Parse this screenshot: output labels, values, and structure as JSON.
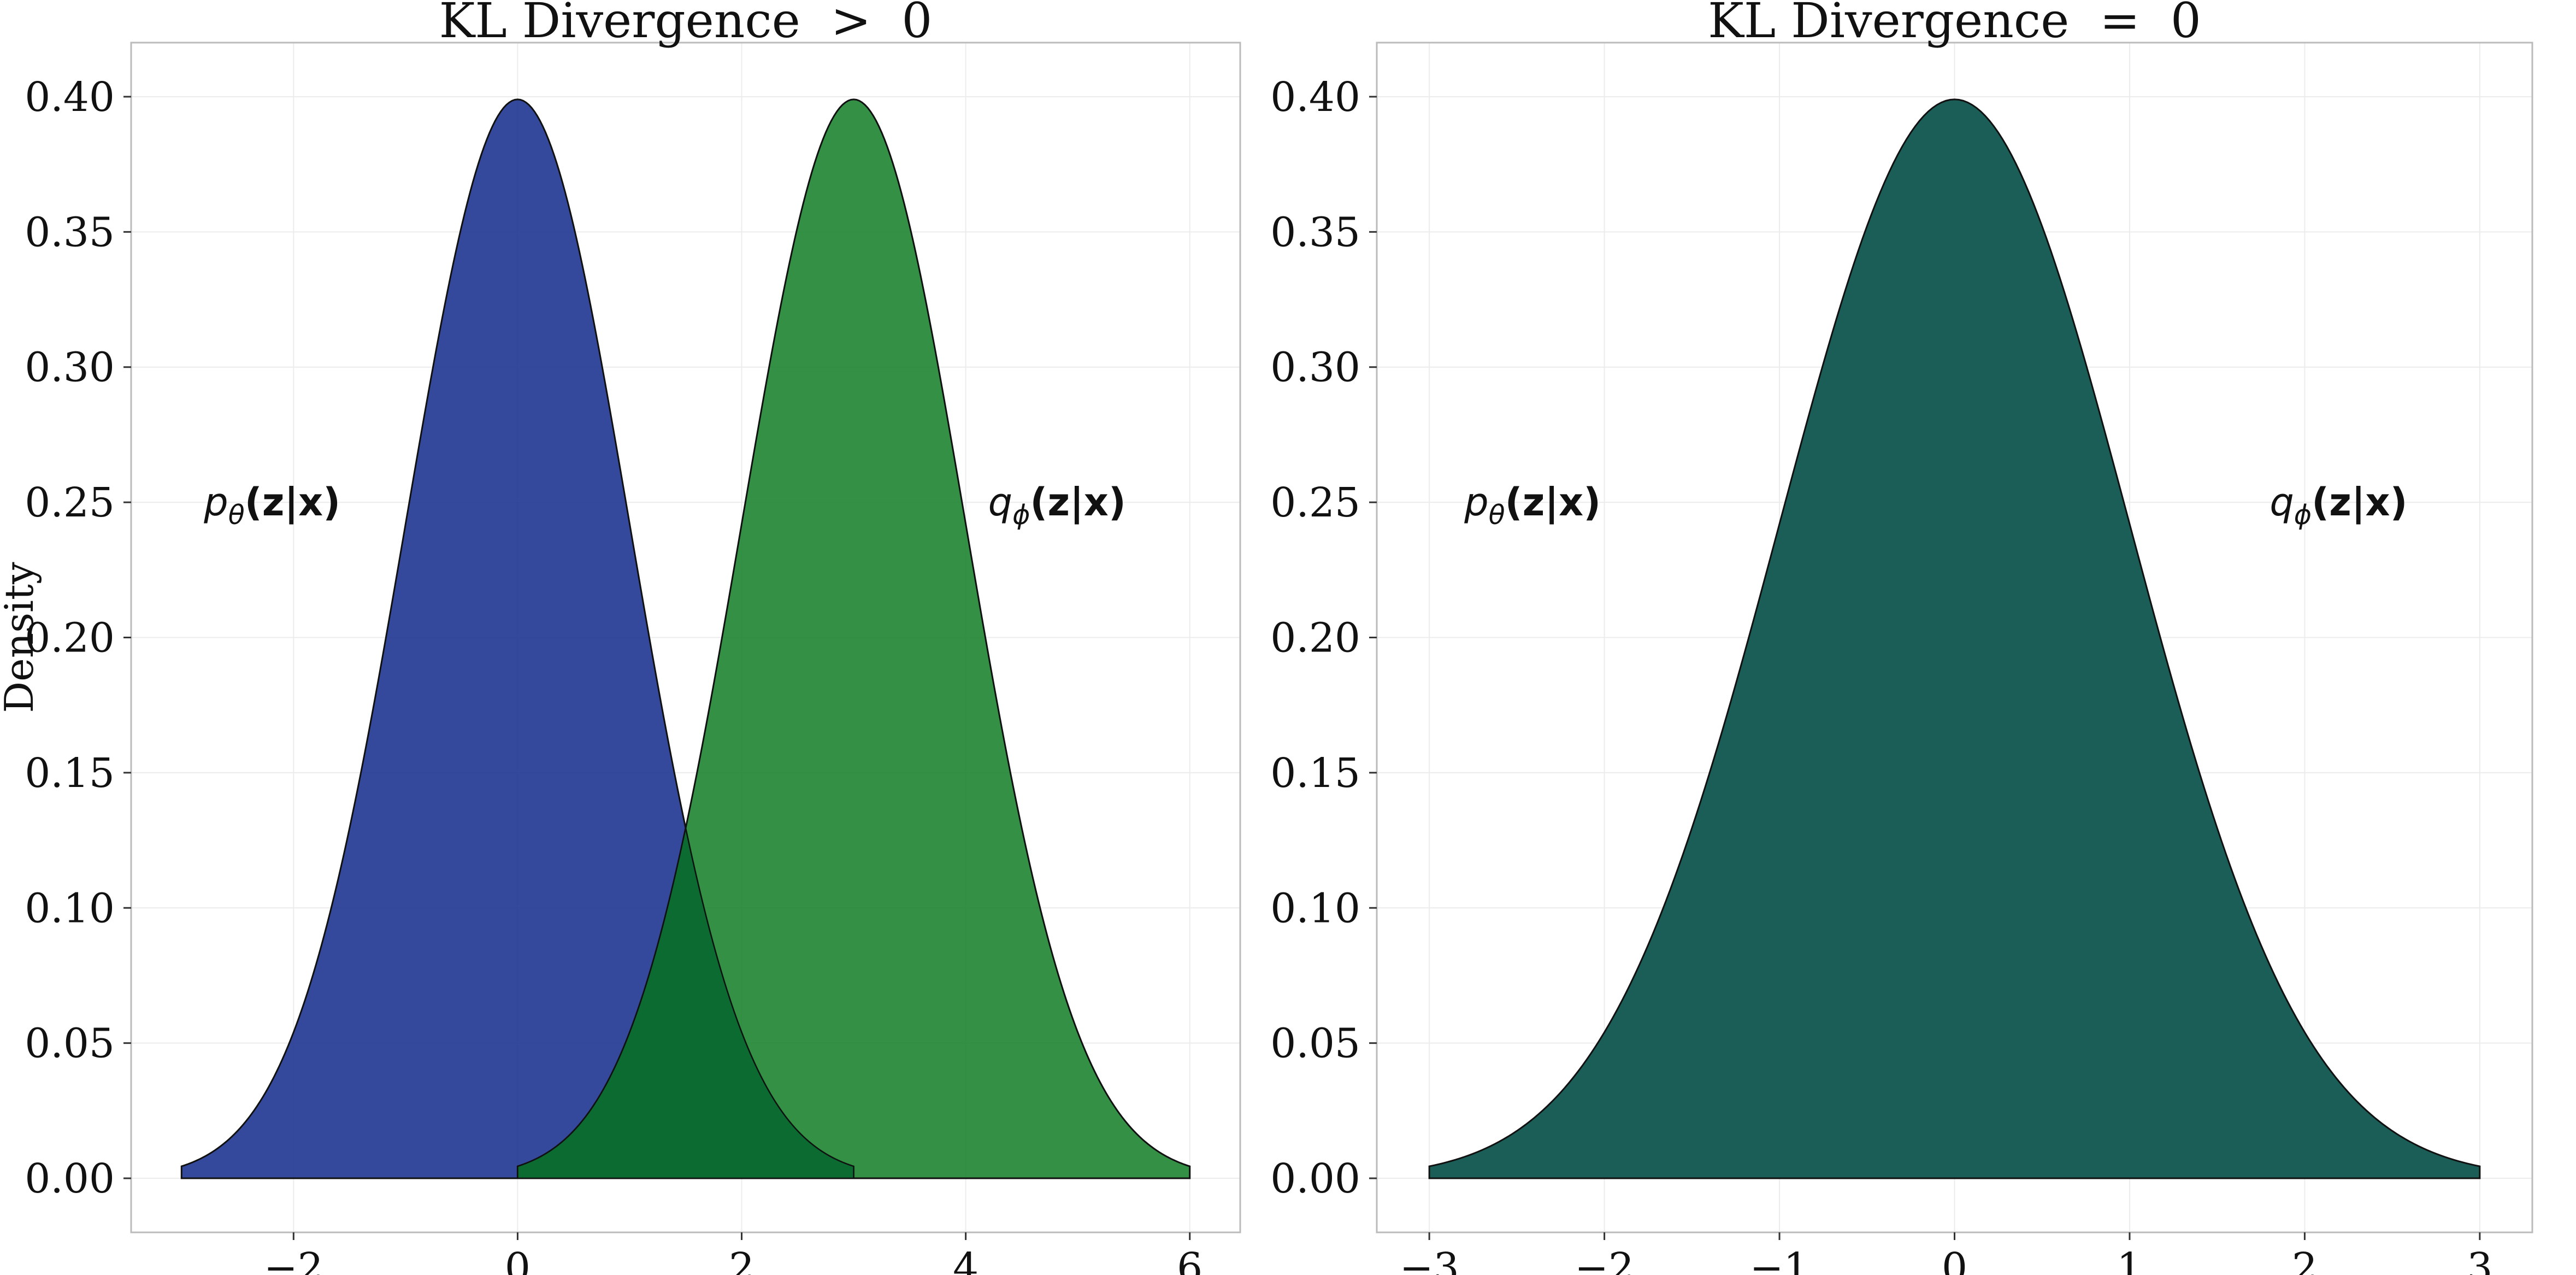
{
  "colors": {
    "p_fill": "#1f3591",
    "q_fill": "#1d8431",
    "overlap_fill": "#0c6b31",
    "same_fill": "#1b5e57",
    "edge": "#111111",
    "grid": "#ececec",
    "frame": "#bbbbbb"
  },
  "chart_data": [
    {
      "type": "area",
      "title": "KL Divergence  >  0",
      "xlabel": "",
      "ylabel": "Density",
      "xlim": [
        -3.45,
        6.45
      ],
      "ylim": [
        -0.02,
        0.42
      ],
      "xticks": [
        -2,
        0,
        2,
        4,
        6
      ],
      "xtick_labels": [
        "−2",
        "0",
        "2",
        "4",
        "6"
      ],
      "yticks": [
        0.0,
        0.05,
        0.1,
        0.15,
        0.2,
        0.25,
        0.3,
        0.35,
        0.4
      ],
      "ytick_labels": [
        "0.00",
        "0.05",
        "0.10",
        "0.15",
        "0.20",
        "0.25",
        "0.30",
        "0.35",
        "0.40"
      ],
      "grid": true,
      "series": [
        {
          "name_base": "p",
          "name_sub": "θ",
          "name_rest": "(z|x)",
          "mean": 0,
          "std": 1,
          "x_range": [
            -3,
            3
          ],
          "peak": 0.399
        },
        {
          "name_base": "q",
          "name_sub": "ϕ",
          "name_rest": "(z|x)",
          "mean": 3,
          "std": 1,
          "x_range": [
            0,
            6
          ],
          "peak": 0.399
        }
      ],
      "overlap_region": [
        0,
        3
      ],
      "annotations": [
        {
          "series": 0,
          "x": -2.8,
          "y": 0.25
        },
        {
          "series": 1,
          "x": 4.2,
          "y": 0.25
        }
      ]
    },
    {
      "type": "area",
      "title": "KL Divergence  =  0",
      "xlabel": "",
      "ylabel": "",
      "xlim": [
        -3.3,
        3.3
      ],
      "ylim": [
        -0.02,
        0.42
      ],
      "xticks": [
        -3,
        -2,
        -1,
        0,
        1,
        2,
        3
      ],
      "xtick_labels": [
        "−3",
        "−2",
        "−1",
        "0",
        "1",
        "2",
        "3"
      ],
      "yticks": [
        0.0,
        0.05,
        0.1,
        0.15,
        0.2,
        0.25,
        0.3,
        0.35,
        0.4
      ],
      "ytick_labels": [
        "0.00",
        "0.05",
        "0.10",
        "0.15",
        "0.20",
        "0.25",
        "0.30",
        "0.35",
        "0.40"
      ],
      "grid": true,
      "series": [
        {
          "name_base": "p",
          "name_sub": "θ",
          "name_rest": "(z|x)",
          "mean": 0,
          "std": 1,
          "x_range": [
            -3,
            3
          ],
          "peak": 0.399
        },
        {
          "name_base": "q",
          "name_sub": "ϕ",
          "name_rest": "(z|x)",
          "mean": 0,
          "std": 1,
          "x_range": [
            -3,
            3
          ],
          "peak": 0.399
        }
      ],
      "annotations": [
        {
          "series": 0,
          "x": -2.8,
          "y": 0.25
        },
        {
          "series": 1,
          "x": 1.8,
          "y": 0.25
        }
      ]
    }
  ]
}
